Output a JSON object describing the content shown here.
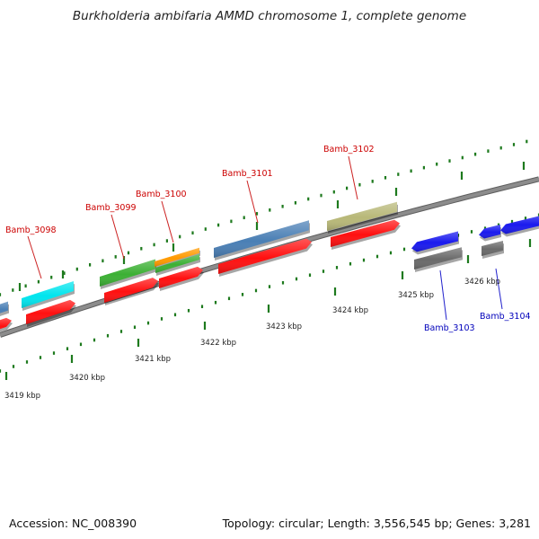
{
  "title": "Burkholderia ambifaria AMMD chromosome 1, complete genome",
  "accession": "Accession: NC_008390",
  "topology": "Topology: circular; Length: 3,556,545 bp; Genes: 3,281",
  "colors": {
    "backbone": "#8c8c8c",
    "tick": "#1e7a1e",
    "forward_label": "#cc0000",
    "reverse_label": "#0000bb",
    "cds": "#ff1010"
  },
  "scale_labels": [
    "3419 kbp",
    "3420 kbp",
    "3421 kbp",
    "3422 kbp",
    "3423 kbp",
    "3424 kbp",
    "3425 kbp",
    "3426 kbp"
  ],
  "gene_labels": {
    "forward": [
      "Bamb_3098",
      "Bamb_3099",
      "Bamb_3100",
      "Bamb_3101",
      "Bamb_3102"
    ],
    "reverse": [
      "Bamb_3103",
      "Bamb_3104"
    ]
  },
  "feature_colors": {
    "partial_left": "#4a7fb5",
    "bamb_3098": "#00e5ee",
    "bamb_3099": "#3cb034",
    "bamb_3100_top": "#ff9a00",
    "bamb_3100_bottom": "#3cb034",
    "bamb_3101": "#4a7fb5",
    "bamb_3102": "#b8b878",
    "bamb_3103": "#1a1aee",
    "bamb_3104": "#1a1aee",
    "reverse_cds": "#6a6a6a"
  }
}
